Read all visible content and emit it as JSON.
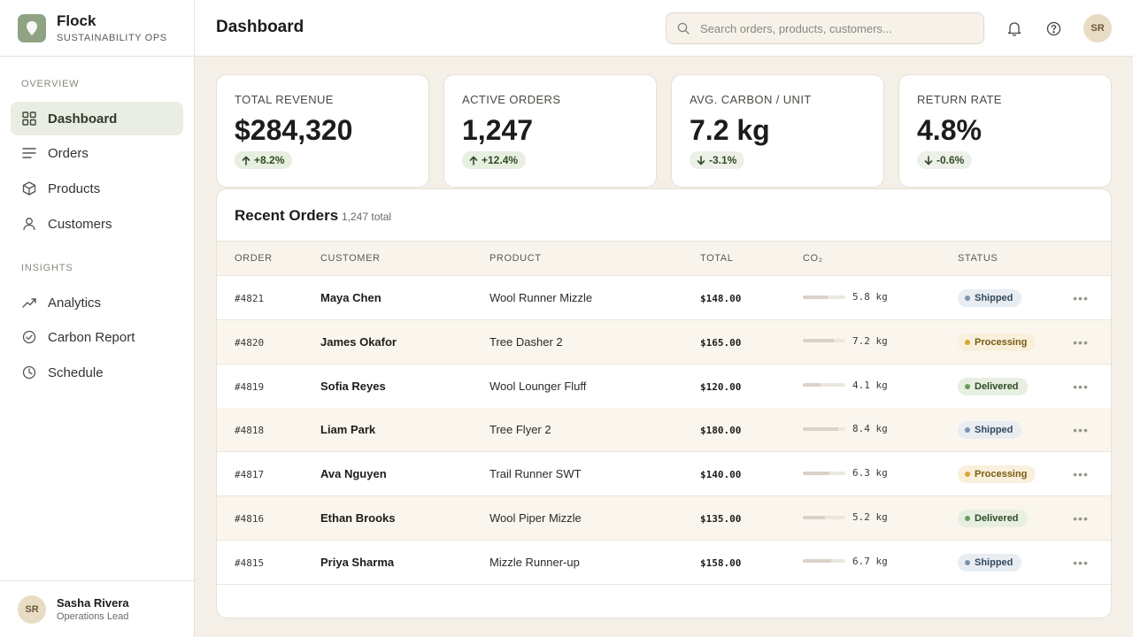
{
  "brand": {
    "name": "Flock",
    "subtitle": "SUSTAINABILITY OPS"
  },
  "sidebar": {
    "sections": [
      {
        "label": "OVERVIEW"
      },
      {
        "label": "INSIGHTS"
      }
    ],
    "items": [
      {
        "label": "Dashboard",
        "icon": "grid-icon",
        "active": true
      },
      {
        "label": "Orders",
        "icon": "list-icon"
      },
      {
        "label": "Products",
        "icon": "box-icon"
      },
      {
        "label": "Customers",
        "icon": "user-icon"
      },
      {
        "label": "Analytics",
        "icon": "trend-icon"
      },
      {
        "label": "Carbon Report",
        "icon": "check-circle-icon"
      },
      {
        "label": "Schedule",
        "icon": "clock-icon"
      }
    ],
    "user": {
      "initials": "SR",
      "name": "Sasha Rivera",
      "role": "Operations Lead"
    }
  },
  "header": {
    "title": "Dashboard",
    "search_placeholder": "Search orders, products, customers...",
    "avatar_initials": "SR"
  },
  "stats": [
    {
      "label": "TOTAL REVENUE",
      "value": "$284,320",
      "change": "+8.2%",
      "direction": "up"
    },
    {
      "label": "ACTIVE ORDERS",
      "value": "1,247",
      "change": "+12.4%",
      "direction": "up"
    },
    {
      "label": "AVG. CARBON / UNIT",
      "value": "7.2 kg",
      "change": "-3.1%",
      "direction": "down"
    },
    {
      "label": "RETURN RATE",
      "value": "4.8%",
      "change": "-0.6%",
      "direction": "down"
    }
  ],
  "orders": {
    "title": "Recent Orders",
    "count": "1,247 total",
    "columns": {
      "order": "ORDER",
      "customer": "CUSTOMER",
      "product": "PRODUCT",
      "total": "TOTAL",
      "co2": "CO₂",
      "status": "STATUS"
    },
    "rows": [
      {
        "order": "#4821",
        "customer": "Maya Chen",
        "product": "Wool Runner Mizzle",
        "total": "$148.00",
        "co2": "5.8 kg",
        "status": "Shipped",
        "status_type": "shipped"
      },
      {
        "order": "#4820",
        "customer": "James Okafor",
        "product": "Tree Dasher 2",
        "total": "$165.00",
        "co2": "7.2 kg",
        "status": "Processing",
        "status_type": "processing"
      },
      {
        "order": "#4819",
        "customer": "Sofia Reyes",
        "product": "Wool Lounger Fluff",
        "total": "$120.00",
        "co2": "4.1 kg",
        "status": "Delivered",
        "status_type": "delivered"
      },
      {
        "order": "#4818",
        "customer": "Liam Park",
        "product": "Tree Flyer 2",
        "total": "$180.00",
        "co2": "8.4 kg",
        "status": "Shipped",
        "status_type": "shipped"
      },
      {
        "order": "#4817",
        "customer": "Ava Nguyen",
        "product": "Trail Runner SWT",
        "total": "$140.00",
        "co2": "6.3 kg",
        "status": "Processing",
        "status_type": "processing"
      },
      {
        "order": "#4816",
        "customer": "Ethan Brooks",
        "product": "Wool Piper Mizzle",
        "total": "$135.00",
        "co2": "5.2 kg",
        "status": "Delivered",
        "status_type": "delivered"
      },
      {
        "order": "#4815",
        "customer": "Priya Sharma",
        "product": "Mizzle Runner-up",
        "total": "$158.00",
        "co2": "6.7 kg",
        "status": "Shipped",
        "status_type": "shipped"
      }
    ]
  },
  "colors": {
    "accent": "#8fa383",
    "background": "#f4f0e8"
  }
}
